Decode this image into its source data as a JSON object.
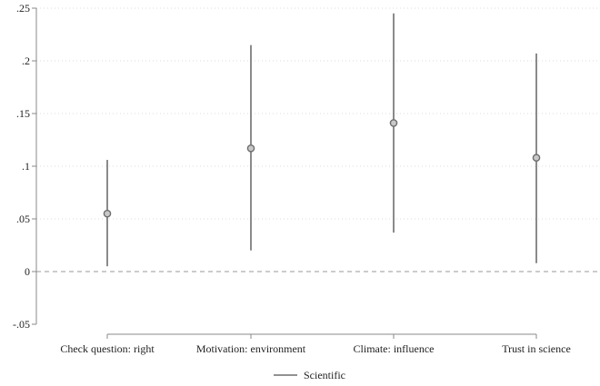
{
  "chart_data": {
    "type": "scatter",
    "subtype": "point-estimate-with-confidence-intervals",
    "title": "",
    "xlabel": "",
    "ylabel": "",
    "categories": [
      "Check question: right",
      "Motivation: environment",
      "Climate: influence",
      "Trust in science"
    ],
    "series": [
      {
        "name": "Scientific",
        "values": [
          0.055,
          0.117,
          0.141,
          0.108
        ],
        "ci_low": [
          0.005,
          0.02,
          0.037,
          0.008
        ],
        "ci_high": [
          0.106,
          0.215,
          0.245,
          0.207
        ]
      }
    ],
    "ylim": [
      -0.05,
      0.25
    ],
    "yticks": [
      -0.05,
      0,
      0.05,
      0.1,
      0.15,
      0.2,
      0.25
    ],
    "ytick_labels": [
      "-.05",
      "0",
      ".05",
      ".1",
      ".15",
      ".2",
      ".25"
    ],
    "reference_line": 0,
    "grid": true,
    "legend": {
      "position": "bottom-center",
      "entries": [
        "Scientific"
      ]
    },
    "colors": {
      "marker_fill": "#c8c8c8",
      "marker_stroke": "#6e6e6e",
      "ci_line": "#6e6e6e",
      "grid": "#d0d0d0",
      "zero_line": "#999999"
    }
  }
}
